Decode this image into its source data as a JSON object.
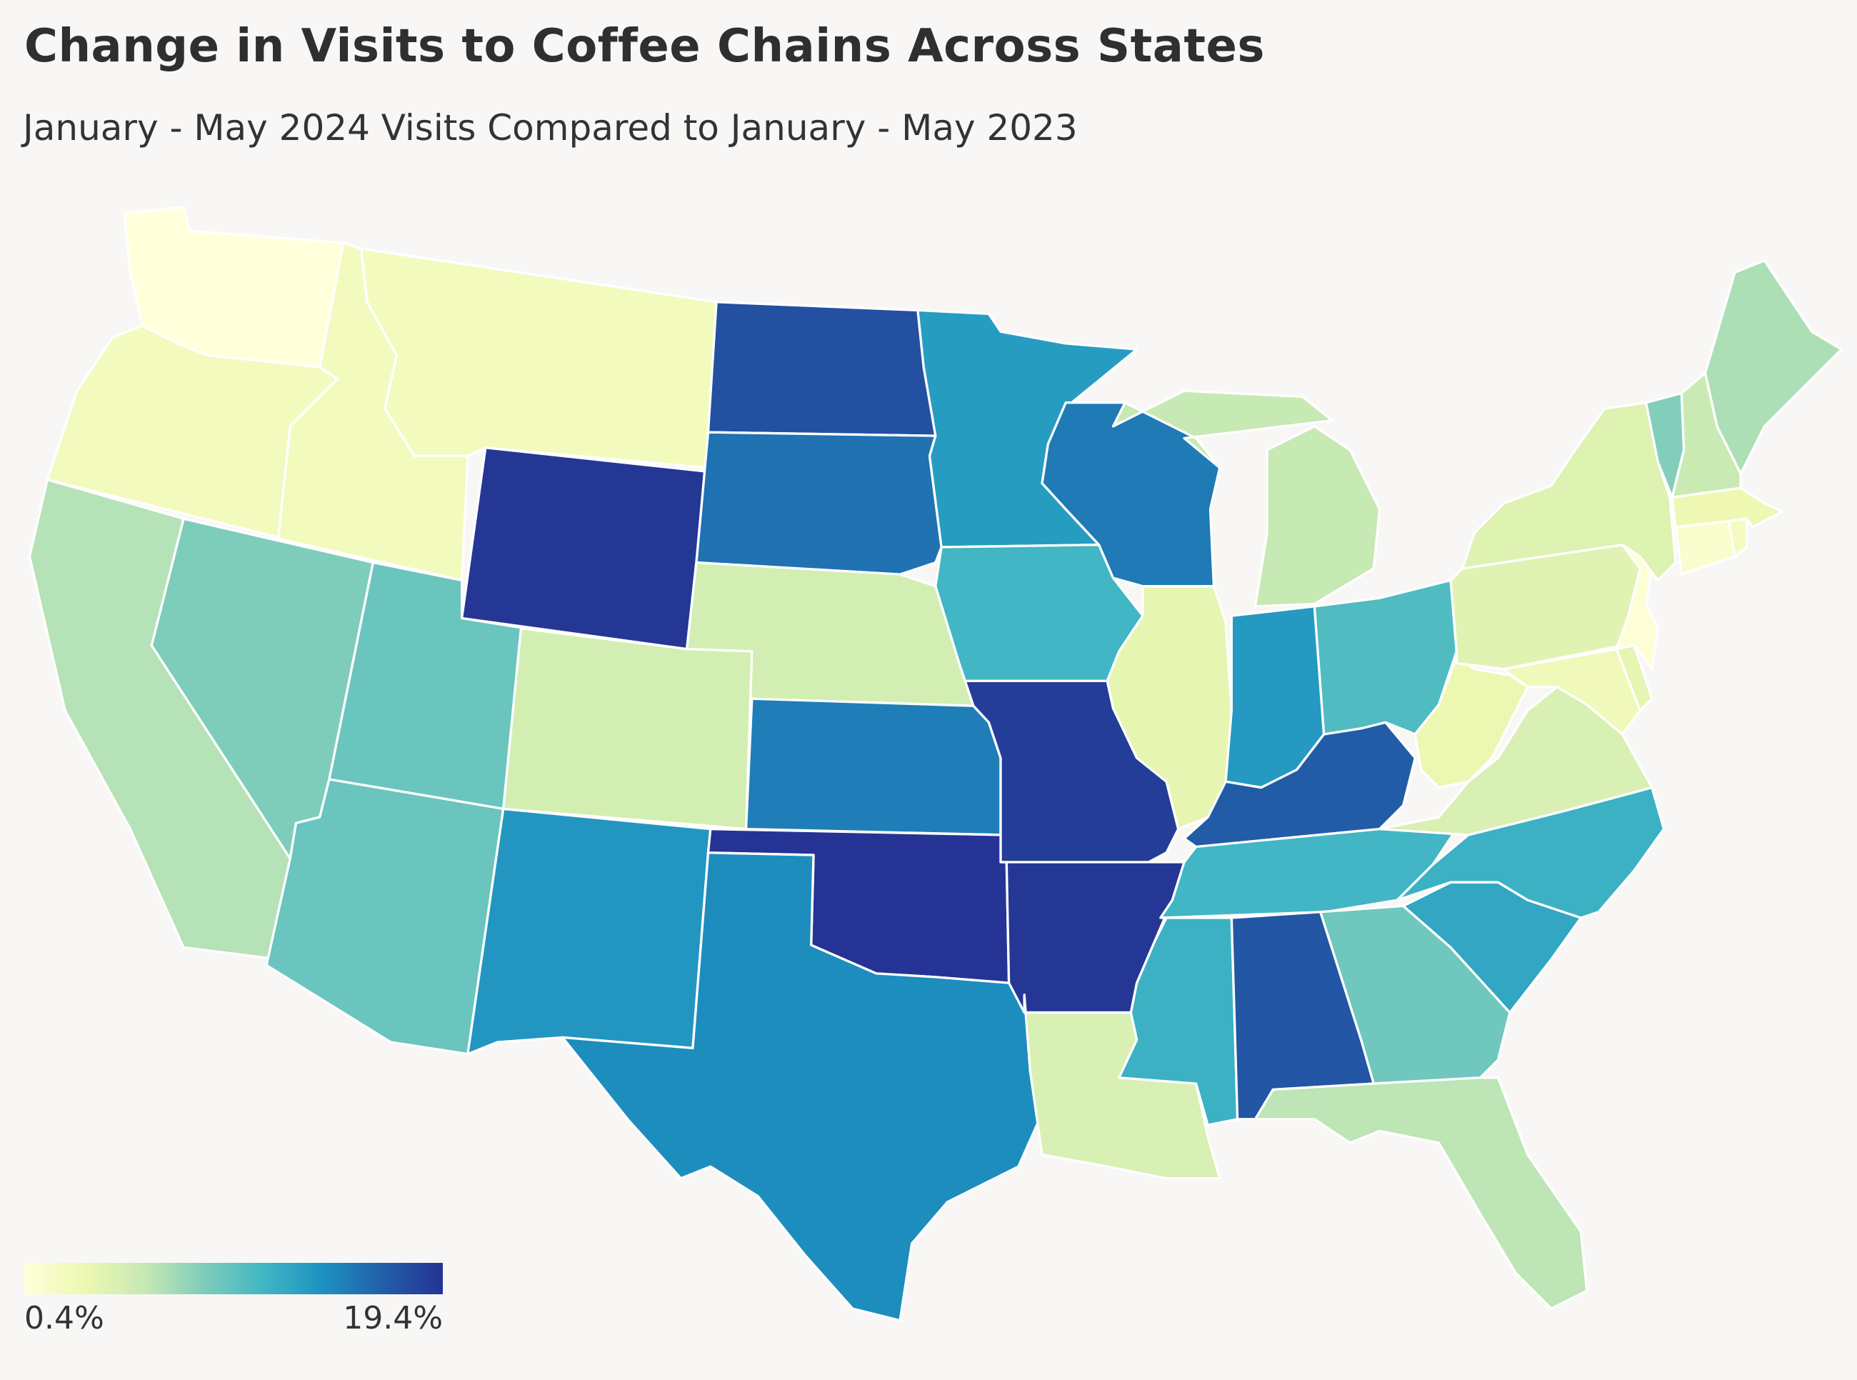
{
  "title": "Change in Visits to Coffee Chains Across States",
  "subtitle": "January - May 2024 Visits Compared to January - May 2023",
  "legend": {
    "min_label": "0.4%",
    "max_label": "19.4%",
    "min_value": 0.4,
    "max_value": 19.4,
    "colors": [
      "#ffffd9",
      "#edf8b1",
      "#c7e9b4",
      "#7fcdbb",
      "#41b6c4",
      "#1d91c0",
      "#225ea8",
      "#253494"
    ]
  },
  "map_data": {
    "type": "choropleth",
    "region_values_pct": {
      "WA": 0.4,
      "OR": 2.2,
      "ID": 2.2,
      "MT": 2.2,
      "ND": 17.6,
      "SD": 15.6,
      "WY": 19.2,
      "NE": 5.0,
      "CO": 5.0,
      "UT": 9.5,
      "NV": 8.6,
      "CA": 6.5,
      "AZ": 9.5,
      "NM": 13.6,
      "KS": 15.0,
      "OK": 19.4,
      "TX": 14.2,
      "MN": 13.2,
      "IA": 11.2,
      "MO": 18.8,
      "AR": 19.2,
      "LA": 4.6,
      "WI": 15.2,
      "IL": 3.6,
      "IN": 13.4,
      "OH": 10.6,
      "MI": 5.8,
      "KY": 16.8,
      "TN": 11.2,
      "MS": 11.6,
      "AL": 17.2,
      "GA": 9.2,
      "FL": 6.2,
      "SC": 12.4,
      "NC": 11.6,
      "VA": 4.6,
      "WV": 3.2,
      "MD": 2.6,
      "DE": 3.6,
      "PA": 4.0,
      "NJ": 0.6,
      "NY": 4.2,
      "CT": 1.2,
      "RI": 2.0,
      "MA": 3.0,
      "VT": 8.4,
      "NH": 5.6,
      "ME": 6.8
    }
  }
}
